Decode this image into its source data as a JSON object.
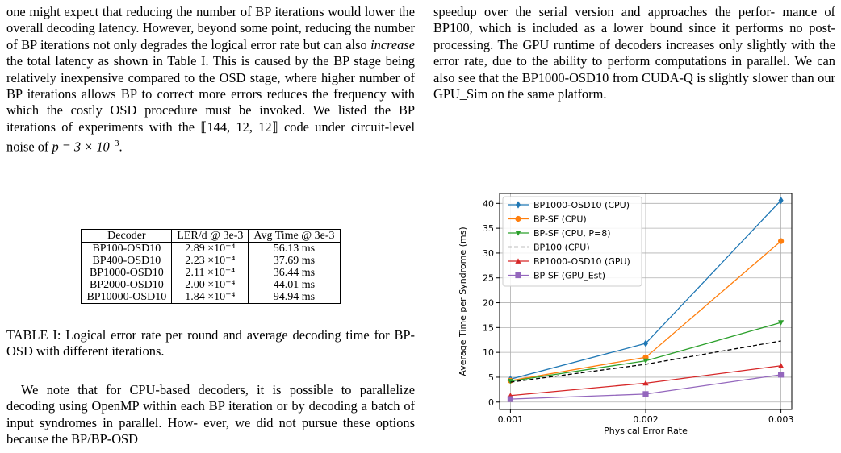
{
  "left": {
    "para1": "one might expect that reducing the number of BP iterations would lower the overall decoding latency. However, beyond some point, reducing the number of BP iterations not only degrades the logical error rate but can also increase the total latency as shown in Table I. This is caused by the BP stage being relatively inexpensive compared to the OSD stage, where higher number of BP iterations allows BP to correct more errors reduces the frequency with which the costly OSD procedure must be invoked. We listed the BP iterations of experiments with the ⟦144, 12, 12⟧ code under circuit-level noise of p = 3 × 10⁻³.",
    "para1_parts": {
      "a": "one might expect that reducing the number of BP iterations would lower the overall decoding latency. However, beyond some point, reducing the number of BP iterations not only degrades the logical error rate but can also ",
      "em": "increase",
      "b": " the total latency as shown in Table I. This is caused by the BP stage being relatively inexpensive compared to the OSD stage, where higher number of BP iterations allows BP to correct more errors reduces the frequency with which the costly OSD procedure must be invoked. We listed the BP iterations of experiments with the ",
      "code": "⟦144, 12, 12⟧",
      "c": " code under circuit-level noise of ",
      "p": "p = 3 × 10",
      "p_exp": "−3",
      "d": "."
    },
    "table": {
      "headers": [
        "Decoder",
        "LER/d @ 3e-3",
        "Avg Time @ 3e-3"
      ],
      "rows": [
        [
          "BP100-OSD10",
          "2.89 ×10⁻⁴",
          "56.13 ms"
        ],
        [
          "BP400-OSD10",
          "2.23 ×10⁻⁴",
          "37.69 ms"
        ],
        [
          "BP1000-OSD10",
          "2.11 ×10⁻⁴",
          "36.44 ms"
        ],
        [
          "BP2000-OSD10",
          "2.00 ×10⁻⁴",
          "44.01 ms"
        ],
        [
          "BP10000-OSD10",
          "1.84 ×10⁻⁴",
          "94.94 ms"
        ]
      ]
    },
    "caption": "TABLE I: Logical error rate per round and average decoding time for BP-OSD with different iterations.",
    "para2": "We note that for CPU-based decoders, it is possible to parallelize decoding using OpenMP within each BP iteration or by decoding a batch of input syndromes in parallel. How- ever, we did not pursue these options because the BP/BP-OSD"
  },
  "right": {
    "para1": "speedup over the serial version and approaches the perfor- mance of BP100, which is included as a lower bound since it performs no post-processing. The GPU runtime of decoders increases only slightly with the error rate, due to the ability to perform computations in parallel. We can also see that the BP1000-OSD10 from CUDA-Q is slightly slower than our GPU_Sim on the same platform."
  },
  "chart_data": {
    "type": "line",
    "x": [
      0.001,
      0.002,
      0.003
    ],
    "xlabel": "Physical Error Rate",
    "ylabel": "Average Time per Syndrome (ms)",
    "xticks": [
      "0.001",
      "0.002",
      "0.003"
    ],
    "yticks": [
      0,
      5,
      10,
      15,
      20,
      25,
      30,
      35,
      40
    ],
    "ylim": [
      -1.5,
      42
    ],
    "grid": true,
    "legend": "top-left",
    "series": [
      {
        "name": "BP1000-OSD10 (CPU)",
        "values": [
          4.6,
          11.8,
          40.6
        ],
        "color": "#1f77b4",
        "marker": "diamond",
        "dash": false
      },
      {
        "name": "BP-SF (CPU)",
        "values": [
          4.3,
          9.0,
          32.4
        ],
        "color": "#ff7f0e",
        "marker": "circle",
        "dash": false
      },
      {
        "name": "BP-SF (CPU, P=8)",
        "values": [
          4.2,
          8.3,
          16.0
        ],
        "color": "#2ca02c",
        "marker": "triangle-down",
        "dash": false
      },
      {
        "name": "BP100 (CPU)",
        "values": [
          4.0,
          7.6,
          12.3
        ],
        "color": "#000000",
        "marker": "none",
        "dash": true
      },
      {
        "name": "BP1000-OSD10 (GPU)",
        "values": [
          1.3,
          3.8,
          7.3
        ],
        "color": "#d62728",
        "marker": "triangle-up",
        "dash": false
      },
      {
        "name": "BP-SF (GPU_Est)",
        "values": [
          0.6,
          1.6,
          5.5
        ],
        "color": "#9467bd",
        "marker": "square",
        "dash": false
      }
    ]
  }
}
